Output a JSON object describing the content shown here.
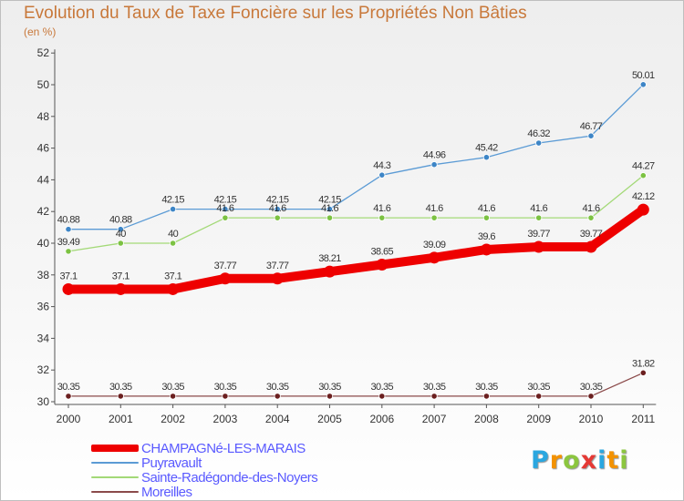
{
  "title": "Evolution du Taux de Taxe Foncière sur les Propriétés Non Bâties",
  "subtitle": "(en %)",
  "logo": {
    "text": "Proxiti",
    "letters": [
      "P",
      "r",
      "o",
      "x",
      "i",
      "t",
      "i"
    ],
    "colors": [
      "#2aa7e0",
      "#f39200",
      "#8cc63f",
      "#e53935",
      "#2aa7e0",
      "#f39200",
      "#8cc63f"
    ]
  },
  "chart_data": {
    "type": "line",
    "title": "Evolution du Taux de Taxe Foncière sur les Propriétés Non Bâties",
    "ylabel": "(en %)",
    "xlabel": "",
    "ylim": [
      30,
      52
    ],
    "yticks": [
      30,
      32,
      34,
      36,
      38,
      40,
      42,
      44,
      46,
      48,
      50,
      52
    ],
    "grid": false,
    "legend_position": "bottom-left",
    "categories": [
      "2000",
      "2001",
      "2002",
      "2003",
      "2004",
      "2005",
      "2006",
      "2007",
      "2008",
      "2009",
      "2010",
      "2011"
    ],
    "series": [
      {
        "name": "Puyravault",
        "color": "#5b9bd5",
        "dot_color": "#3d85c6",
        "values": [
          40.88,
          40.88,
          42.15,
          42.15,
          42.15,
          42.15,
          44.3,
          44.96,
          45.42,
          46.32,
          46.77,
          50.01
        ],
        "labels": [
          "40.88",
          "40.88",
          "42.15",
          "42.15",
          "42.15",
          "42.15",
          "44.3",
          "44.96",
          "45.42",
          "46.32",
          "46.77",
          "50.01"
        ]
      },
      {
        "name": "Sainte-Radégonde-des-Noyers",
        "color": "#a3d977",
        "dot_color": "#7cc242",
        "values": [
          39.49,
          40,
          40,
          41.6,
          41.6,
          41.6,
          41.6,
          41.6,
          41.6,
          41.6,
          41.6,
          44.27
        ],
        "labels": [
          "39.49",
          "40",
          "40",
          "41.6",
          "41.6",
          "41.6",
          "41.6",
          "41.6",
          "41.6",
          "41.6",
          "41.6",
          "44.27"
        ]
      },
      {
        "name": "Moreilles",
        "color": "#8b4a4a",
        "dot_color": "#6b1f1f",
        "values": [
          30.35,
          30.35,
          30.35,
          30.35,
          30.35,
          30.35,
          30.35,
          30.35,
          30.35,
          30.35,
          30.35,
          31.82
        ],
        "labels": [
          "30.35",
          "30.35",
          "30.35",
          "30.35",
          "30.35",
          "30.35",
          "30.35",
          "30.35",
          "30.35",
          "30.35",
          "30.35",
          "31.82"
        ]
      },
      {
        "name": "CHAMPAGNé-LES-MARAIS",
        "color": "#ee0000",
        "dot_color": "#ee0000",
        "values": [
          37.1,
          37.1,
          37.1,
          37.77,
          37.77,
          38.21,
          38.65,
          39.09,
          39.6,
          39.77,
          39.77,
          42.12
        ],
        "labels": [
          "37.1",
          "37.1",
          "37.1",
          "37.77",
          "37.77",
          "38.21",
          "38.65",
          "39.09",
          "39.6",
          "39.77",
          "39.77",
          "42.12"
        ]
      }
    ],
    "legend_order": [
      "CHAMPAGNé-LES-MARAIS",
      "Puyravault",
      "Sainte-Radégonde-des-Noyers",
      "Moreilles"
    ]
  }
}
